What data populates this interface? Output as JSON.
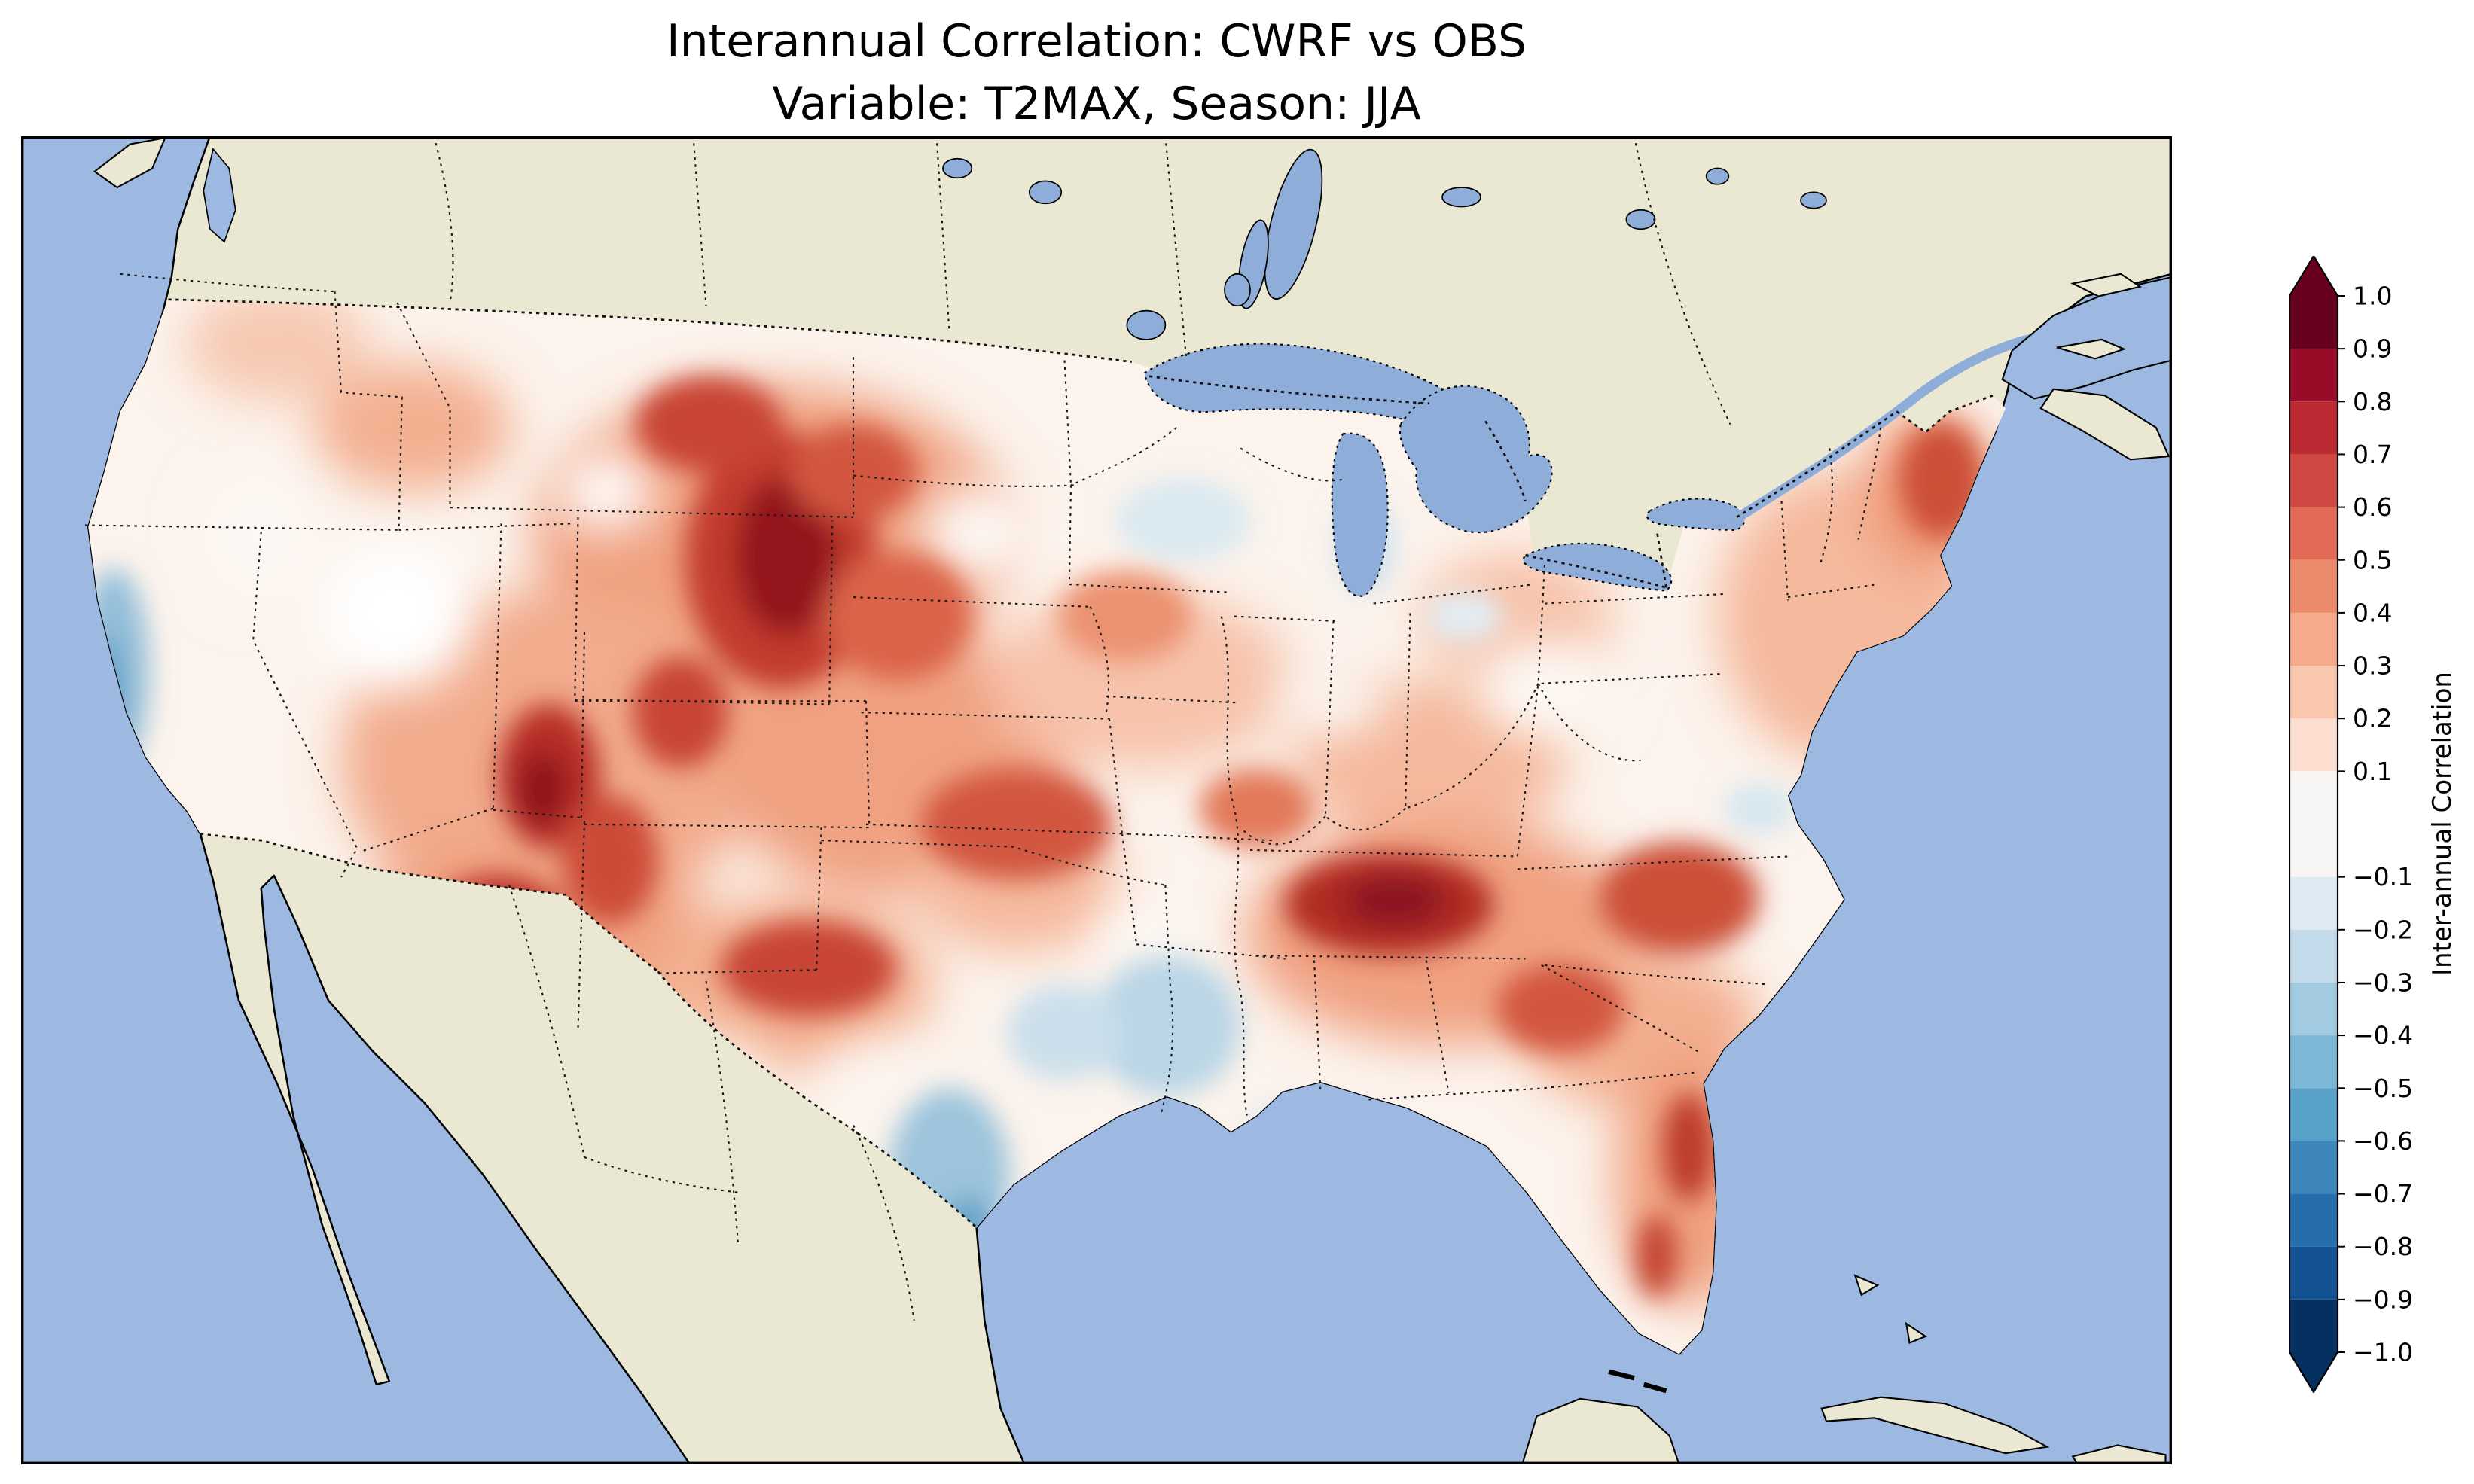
{
  "chart_data": {
    "type": "heatmap",
    "chart_kind": "filled-contour correlation map over the contiguous United States",
    "title": "Interannual Correlation: CWRF vs OBS",
    "subtitle": "Variable: T2MAX, Season: JJA",
    "model": "CWRF",
    "reference": "OBS",
    "variable": "T2MAX",
    "season": "JJA",
    "colorbar": {
      "label": "Inter-annual Correlation",
      "orientation": "vertical",
      "position": "right",
      "colormap": "RdBu_r",
      "extend": "both",
      "range": [
        -1.0,
        1.0
      ],
      "levels": [
        1.0,
        0.9,
        0.8,
        0.7,
        0.6,
        0.5,
        0.4,
        0.3,
        0.2,
        0.1,
        -0.1,
        -0.2,
        -0.3,
        -0.4,
        -0.5,
        -0.6,
        -0.7,
        -0.8,
        -0.9,
        -1.0
      ],
      "tick_labels": [
        "1.0",
        "0.9",
        "0.8",
        "0.7",
        "0.6",
        "0.5",
        "0.4",
        "0.3",
        "0.2",
        "0.1",
        "−0.1",
        "−0.2",
        "−0.3",
        "−0.4",
        "−0.5",
        "−0.6",
        "−0.7",
        "−0.8",
        "−0.9",
        "−1.0"
      ],
      "band_colors_top_to_bottom": [
        "#67001f",
        "#980c28",
        "#bb2a33",
        "#d04841",
        "#e06a55",
        "#ec8a6c",
        "#f5aa8b",
        "#f9c7ad",
        "#fbdecf",
        "#f7f6f4",
        "#dfebf2",
        "#c3dbea",
        "#a2cbe2",
        "#7cb7d6",
        "#57a0c8",
        "#3c86ba",
        "#276cab",
        "#135394",
        "#053061"
      ],
      "extend_colors": {
        "over": "#67001f",
        "under": "#053061"
      }
    },
    "map": {
      "region": "Contiguous United States (with surrounding Canada, Mexico, oceans shown)",
      "ocean_color": "#9db9e2",
      "lake_color": "#8fadd9",
      "land_color": "#eae8d2",
      "border_style": "dotted black state, national and coastline borders",
      "field_masked_to": "United States only"
    },
    "regional_values_estimated": [
      {
        "region": "Wyoming / Nebraska panhandle / N Colorado",
        "correlation": 0.9
      },
      {
        "region": "Montana / western Dakotas",
        "correlation": 0.7
      },
      {
        "region": "Utah / Great Basin",
        "correlation": 0.7
      },
      {
        "region": "Arizona",
        "correlation": 0.7
      },
      {
        "region": "New Mexico / west Texas",
        "correlation": 0.6
      },
      {
        "region": "Kansas / Missouri",
        "correlation": 0.5
      },
      {
        "region": "Tennessee Valley",
        "correlation": 0.8
      },
      {
        "region": "Carolinas / Southeast",
        "correlation": 0.6
      },
      {
        "region": "Georgia",
        "correlation": 0.5
      },
      {
        "region": "Florida peninsula",
        "correlation": 0.6
      },
      {
        "region": "Northeast US / Maine",
        "correlation": 0.5
      },
      {
        "region": "Upper Midwest / Great Lakes",
        "correlation": 0.2
      },
      {
        "region": "Pacific Northwest interior",
        "correlation": 0.2
      },
      {
        "region": "Coastal northern California",
        "correlation": -0.4
      },
      {
        "region": "South Texas coast",
        "correlation": -0.5
      },
      {
        "region": "Lower Mississippi Valley / Louisiana",
        "correlation": -0.2
      },
      {
        "region": "Central Texas",
        "correlation": 0.1
      }
    ]
  }
}
